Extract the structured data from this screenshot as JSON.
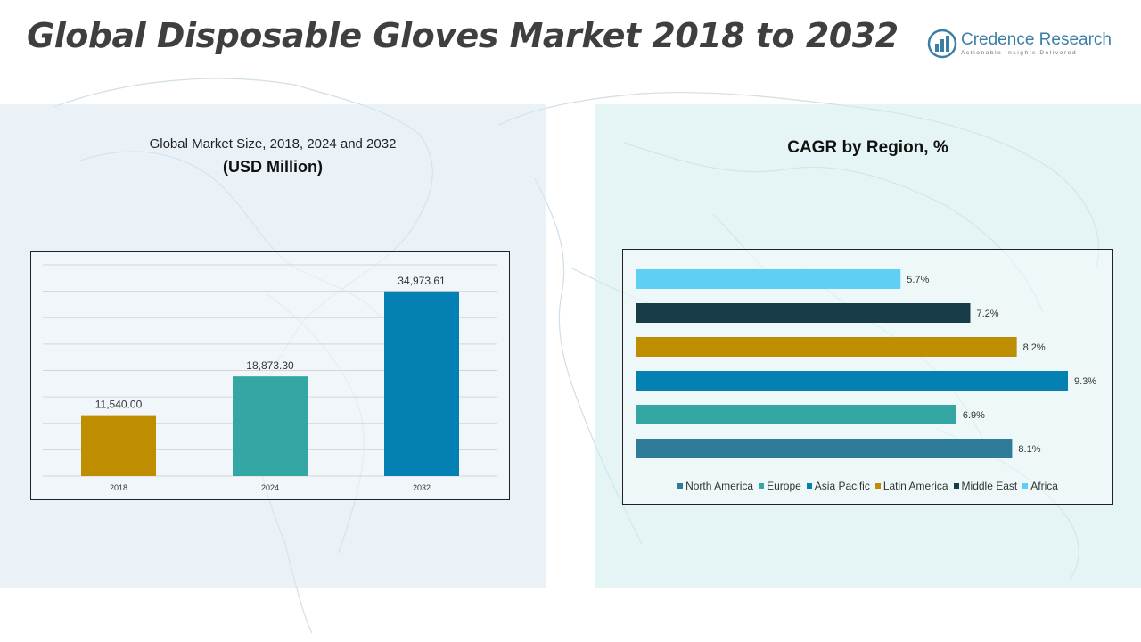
{
  "title": "Global Disposable Gloves Market 2018 to 2032",
  "logo": {
    "name": "Credence Research",
    "tagline": "Actionable Insights Delivered"
  },
  "left_panel": {
    "subtitle": "Global Market Size, 2018, 2024 and 2032",
    "unit": "(USD Million)"
  },
  "right_panel": {
    "title": "CAGR by Region, %"
  },
  "colors": {
    "accent_blue": "#3d7ea6",
    "bar_2018": "#be8e00",
    "bar_2024": "#34a7a5",
    "bar_2032": "#0580b2",
    "north_america": "#2e7c99",
    "europe": "#34a7a5",
    "asia_pacific": "#0580b2",
    "latin_america": "#be8e00",
    "middle_east": "#183b48",
    "africa": "#5fd0f3"
  },
  "chart_data": [
    {
      "type": "bar",
      "title": "Global Market Size, 2018, 2024 and 2032",
      "ylabel": "USD Million",
      "categories": [
        "2018",
        "2024",
        "2032"
      ],
      "values": [
        11540.0,
        18873.3,
        34973.61
      ],
      "value_labels": [
        "11,540.00",
        "18,873.30",
        "34,973.61"
      ],
      "ylim": [
        0,
        40000
      ],
      "grid": true
    },
    {
      "type": "bar",
      "orientation": "horizontal",
      "title": "CAGR by Region, %",
      "categories": [
        "Africa",
        "Middle East",
        "Latin America",
        "Asia Pacific",
        "Europe",
        "North America"
      ],
      "values": [
        5.7,
        7.2,
        8.2,
        9.3,
        6.9,
        8.1
      ],
      "value_labels": [
        "5.7%",
        "7.2%",
        "8.2%",
        "9.3%",
        "6.9%",
        "8.1%"
      ],
      "xlim": [
        0,
        9.3
      ],
      "legend": [
        "North America",
        "Europe",
        "Asia Pacific",
        "Latin America",
        "Middle East",
        "Africa"
      ],
      "legend_position": "bottom"
    }
  ]
}
